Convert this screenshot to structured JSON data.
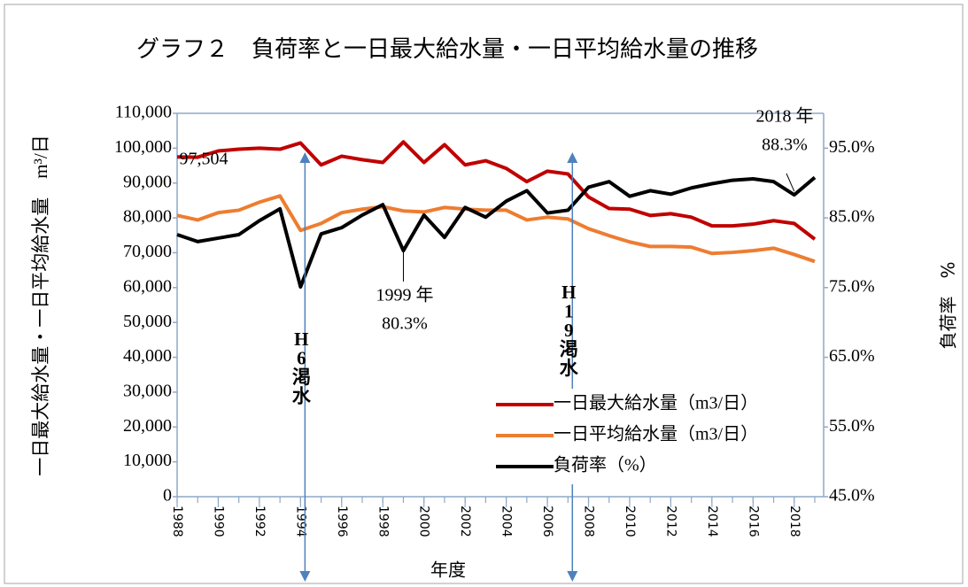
{
  "chart_data": {
    "type": "line",
    "title": "グラフ２　負荷率と一日最大給水量・一日平均給水量の推移",
    "x_label": "年度",
    "y_label": "一日最大給水量・一日平均給水量　m³/日",
    "y2_label": "負荷率　%",
    "x": [
      1988,
      1989,
      1990,
      1991,
      1992,
      1993,
      1994,
      1995,
      1996,
      1997,
      1998,
      1999,
      2000,
      2001,
      2002,
      2003,
      2004,
      2005,
      2006,
      2007,
      2008,
      2009,
      2010,
      2011,
      2012,
      2013,
      2014,
      2015,
      2016,
      2017,
      2018,
      2019
    ],
    "xlim": [
      1988,
      2019
    ],
    "xticks": [
      1988,
      1990,
      1992,
      1994,
      1996,
      1998,
      2000,
      2002,
      2004,
      2006,
      2008,
      2010,
      2012,
      2014,
      2016,
      2018
    ],
    "ylim": [
      0,
      110000
    ],
    "yticks": [
      0,
      {
        "value": 10000,
        "label": "10,000"
      },
      {
        "value": 20000,
        "label": "20,000"
      },
      {
        "value": 30000,
        "label": "30,000"
      },
      {
        "value": 40000,
        "label": "40,000"
      },
      {
        "value": 50000,
        "label": "50,000"
      },
      {
        "value": 60000,
        "label": "60,000"
      },
      {
        "value": 70000,
        "label": "70,000"
      },
      {
        "value": 80000,
        "label": "80,000"
      },
      {
        "value": 90000,
        "label": "90,000"
      },
      {
        "value": 100000,
        "label": "100,000"
      },
      {
        "value": 110000,
        "label": "110,000"
      }
    ],
    "y2lim": [
      45,
      100
    ],
    "y2ticks": [
      {
        "value": 45,
        "label": "45.0%"
      },
      {
        "value": 55,
        "label": "55.0%"
      },
      {
        "value": 65,
        "label": "65.0%"
      },
      {
        "value": 75,
        "label": "75.0%"
      },
      {
        "value": 85,
        "label": "85.0%"
      },
      {
        "value": 95,
        "label": "95.0%"
      }
    ],
    "grid": false,
    "legend": "lower-right",
    "series": [
      {
        "name": "一日最大給水量（m3/日）",
        "color": "#c00000",
        "values": [
          97504,
          97400,
          99200,
          99700,
          100000,
          99700,
          101500,
          95200,
          97700,
          96700,
          95900,
          101800,
          95900,
          101000,
          95200,
          96400,
          94200,
          90400,
          93400,
          92600,
          86000,
          82700,
          82500,
          80700,
          81200,
          80200,
          77700,
          77700,
          78200,
          79200,
          78400,
          73900
        ]
      },
      {
        "name": "一日平均給水量（m3/日）",
        "color": "#ed7d31",
        "values": [
          80700,
          79400,
          81500,
          82200,
          84500,
          86300,
          76400,
          78400,
          81500,
          82500,
          83200,
          82000,
          81700,
          83000,
          82500,
          82200,
          82200,
          79400,
          80200,
          79700,
          76900,
          74900,
          73100,
          71800,
          71800,
          71600,
          69800,
          70100,
          70600,
          71300,
          69500,
          67500
        ]
      },
      {
        "name": "負荷率（%）",
        "color": "#000000",
        "axis": "y2",
        "values": [
          82.6,
          81.6,
          82.1,
          82.6,
          84.6,
          86.3,
          75.1,
          82.7,
          83.6,
          85.4,
          86.9,
          80.3,
          85.4,
          82.2,
          86.5,
          85.1,
          87.4,
          88.9,
          85.7,
          86.1,
          89.4,
          90.2,
          88.1,
          88.9,
          88.4,
          89.3,
          89.9,
          90.4,
          90.6,
          90.2,
          88.3,
          90.8
        ]
      }
    ],
    "annotations": [
      {
        "x": 1988,
        "value": 97504,
        "lines": [
          "97,504"
        ]
      },
      {
        "x": 1999,
        "value": 80.3,
        "axis": "y2",
        "lines": [
          "1999 年",
          "80.3%"
        ]
      },
      {
        "x": 2018,
        "value": 88.3,
        "axis": "y2",
        "lines": [
          "2018 年",
          "88.3%"
        ]
      }
    ],
    "events": [
      {
        "x": 1994,
        "label": [
          "H",
          "6",
          "渇",
          "水"
        ]
      },
      {
        "x": 2007,
        "label": [
          "H",
          "1",
          "9",
          "渇",
          "水"
        ]
      }
    ]
  }
}
